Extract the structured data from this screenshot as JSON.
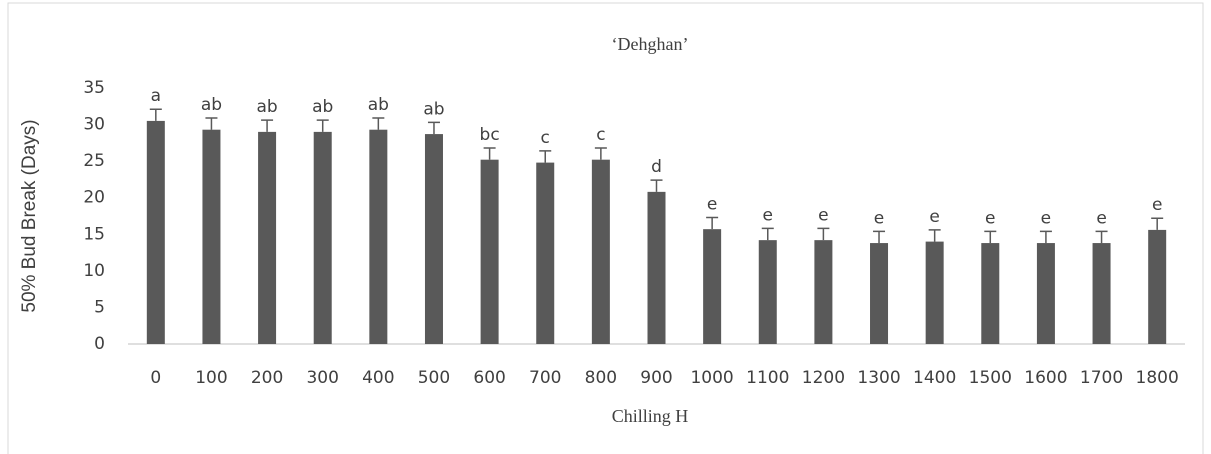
{
  "chart_data": {
    "type": "bar",
    "title": "‘Dehghan’",
    "x_label": "Chilling H",
    "y_label": "50% Bud Break (Days)",
    "categories": [
      "0",
      "100",
      "200",
      "300",
      "400",
      "500",
      "600",
      "700",
      "800",
      "900",
      "1000",
      "1100",
      "1200",
      "1300",
      "1400",
      "1500",
      "1600",
      "1700",
      "1800"
    ],
    "values": [
      30.5,
      29.3,
      29.0,
      29.0,
      29.3,
      28.7,
      25.2,
      24.8,
      25.2,
      20.8,
      15.7,
      14.2,
      14.2,
      13.8,
      14.0,
      13.8,
      13.8,
      13.8,
      15.6
    ],
    "errors": [
      1.6,
      1.6,
      1.6,
      1.6,
      1.6,
      1.6,
      1.6,
      1.6,
      1.6,
      1.6,
      1.6,
      1.6,
      1.6,
      1.6,
      1.6,
      1.6,
      1.6,
      1.6,
      1.6
    ],
    "letters": [
      "a",
      "ab",
      "ab",
      "ab",
      "ab",
      "ab",
      "bc",
      "c",
      "c",
      "d",
      "e",
      "e",
      "e",
      "e",
      "e",
      "e",
      "e",
      "e",
      "e"
    ],
    "color": "#595959",
    "ylim": [
      0,
      35
    ],
    "yticks": [
      0,
      5,
      10,
      15,
      20,
      25,
      30,
      35
    ],
    "grid": false
  }
}
